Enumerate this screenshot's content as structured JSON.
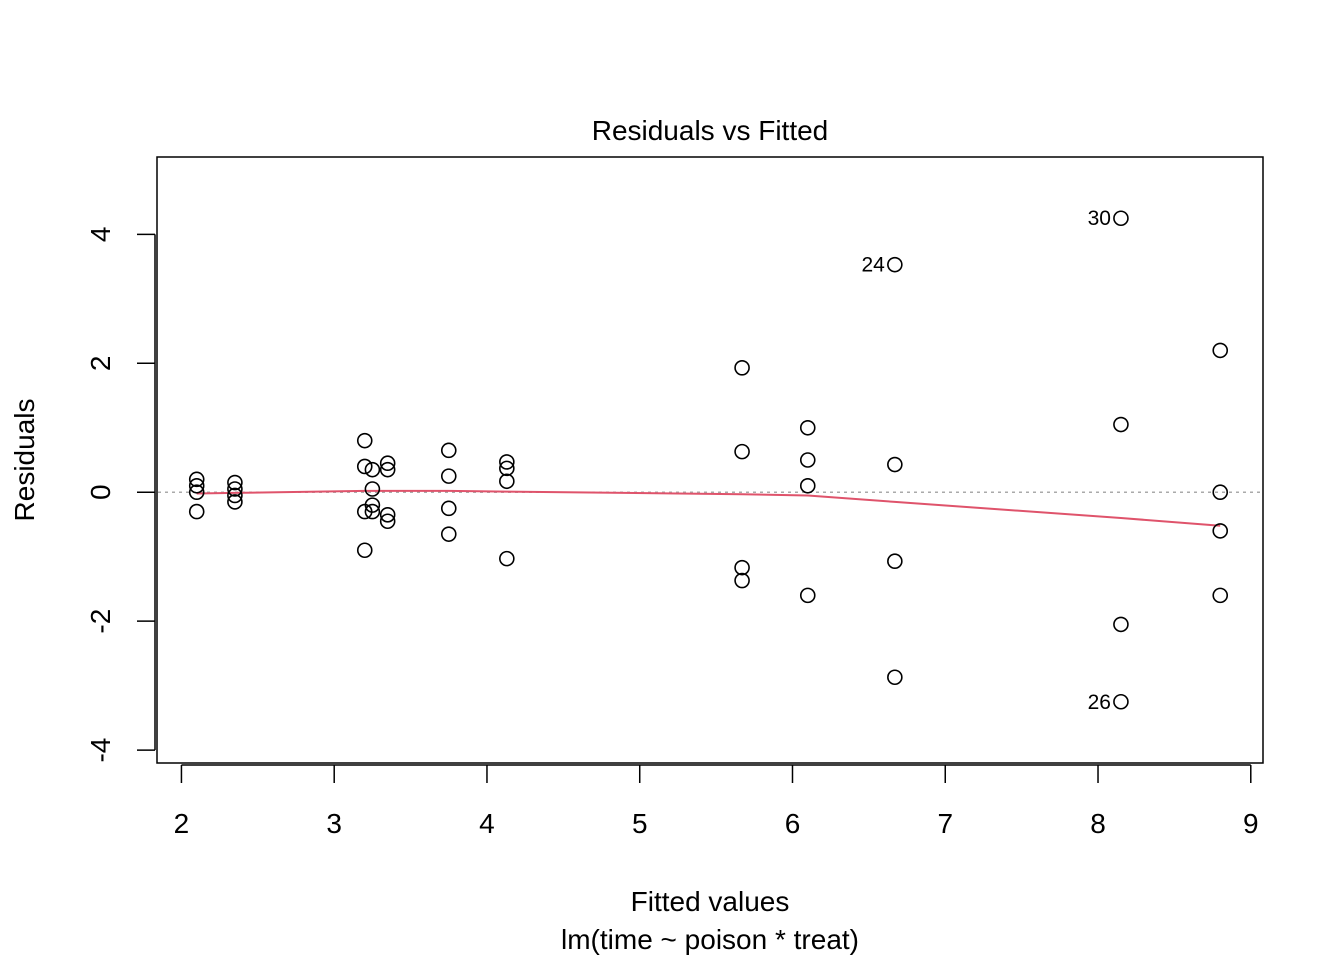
{
  "chart_data": {
    "type": "scatter",
    "title": "Residuals vs Fitted",
    "xlabel": "Fitted values",
    "subtitle": "lm(time ~ poison * treat)",
    "ylabel": "Residuals",
    "xlim": [
      1.84,
      9.08
    ],
    "ylim": [
      -4.2,
      5.2
    ],
    "x_ticks": [
      2,
      3,
      4,
      5,
      6,
      7,
      8,
      9
    ],
    "y_ticks": [
      -4,
      -2,
      0,
      2,
      4
    ],
    "grid": false,
    "reference_line": {
      "y": 0,
      "color": "#AAAAAA",
      "style": "dotted"
    },
    "smooth_line": {
      "color": "#DF536B",
      "x": [
        2.1,
        2.35,
        3.2,
        3.75,
        4.13,
        5.67,
        6.1,
        6.67,
        8.15,
        8.8
      ],
      "y": [
        -0.02,
        -0.01,
        0.02,
        0.02,
        0.01,
        -0.03,
        -0.05,
        -0.15,
        -0.4,
        -0.52
      ]
    },
    "points": {
      "x": [
        2.1,
        2.1,
        2.1,
        2.1,
        2.35,
        2.35,
        2.35,
        2.35,
        3.2,
        3.2,
        3.2,
        3.2,
        3.25,
        3.25,
        3.25,
        3.25,
        3.35,
        3.35,
        3.35,
        3.35,
        3.75,
        3.75,
        3.75,
        3.75,
        4.13,
        4.13,
        4.13,
        4.13,
        5.67,
        5.67,
        5.67,
        5.67,
        6.1,
        6.1,
        6.1,
        6.1,
        6.67,
        6.67,
        6.67,
        6.67,
        8.15,
        8.15,
        8.15,
        8.15,
        8.8,
        8.8,
        8.8,
        8.8
      ],
      "y": [
        0.2,
        0.1,
        0.0,
        -0.3,
        0.15,
        0.05,
        -0.05,
        -0.15,
        0.8,
        0.4,
        -0.3,
        -0.9,
        0.35,
        0.05,
        -0.2,
        -0.3,
        0.45,
        0.35,
        -0.35,
        -0.45,
        0.65,
        0.25,
        -0.25,
        -0.65,
        0.47,
        0.37,
        0.17,
        -1.03,
        1.93,
        0.63,
        -1.17,
        -1.37,
        1.0,
        0.5,
        0.1,
        -1.6,
        3.53,
        0.43,
        -1.07,
        -2.87,
        4.25,
        1.05,
        -2.05,
        -3.25,
        2.2,
        0.0,
        -0.6,
        -1.6
      ]
    },
    "point_labels": [
      {
        "text": "30",
        "x": 8.15,
        "y": 4.25
      },
      {
        "text": "24",
        "x": 6.67,
        "y": 3.53
      },
      {
        "text": "26",
        "x": 8.15,
        "y": -3.25
      }
    ]
  }
}
